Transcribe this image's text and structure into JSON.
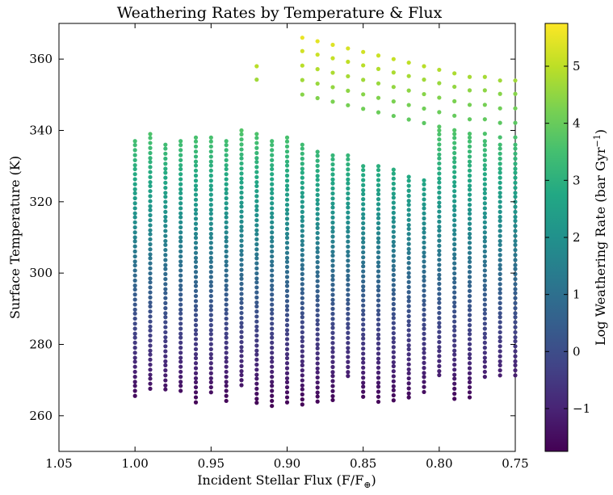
{
  "chart_data": {
    "type": "scatter",
    "title": "Weathering Rates by Temperature & Flux",
    "xlabel_main": "Incident Stellar Flux (F/F",
    "xlabel_sub": "⊕",
    "xlabel_close": ")",
    "ylabel": "Surface Temperature (K)",
    "colorbar_label_main": "Log Weathering Rate (bar Gyr",
    "colorbar_label_sup": "−1",
    "colorbar_label_close": ")",
    "xlim": [
      1.05,
      0.75
    ],
    "x_inverted": true,
    "ylim": [
      250,
      370
    ],
    "xticks": [
      1.05,
      1.0,
      0.95,
      0.9,
      0.85,
      0.8,
      0.75
    ],
    "xtick_labels": [
      "1.05",
      "1.00",
      "0.95",
      "0.90",
      "0.85",
      "0.80",
      "0.75"
    ],
    "yticks": [
      260,
      280,
      300,
      320,
      340,
      360
    ],
    "ytick_labels": [
      "260",
      "280",
      "300",
      "320",
      "340",
      "360"
    ],
    "colorbar": {
      "colormap": "viridis",
      "range": [
        -1.75,
        5.75
      ],
      "ticks": [
        -1,
        0,
        1,
        2,
        3,
        4,
        5
      ],
      "tick_labels": [
        "−1",
        "0",
        "1",
        "2",
        "3",
        "4",
        "5"
      ]
    },
    "marker_color_encoding": "log weathering rate (viridis), increasing with surface temperature",
    "columns": [
      {
        "x": 1.0,
        "ymin": 265,
        "ymax": 337
      },
      {
        "x": 0.99,
        "ymin": 267,
        "ymax": 339
      },
      {
        "x": 0.98,
        "ymin": 267,
        "ymax": 336
      },
      {
        "x": 0.97,
        "ymin": 266,
        "ymax": 337
      },
      {
        "x": 0.96,
        "ymin": 263,
        "ymax": 338
      },
      {
        "x": 0.95,
        "ymin": 266,
        "ymax": 338
      },
      {
        "x": 0.94,
        "ymin": 264,
        "ymax": 337
      },
      {
        "x": 0.93,
        "ymin": 268,
        "ymax": 340
      },
      {
        "x": 0.92,
        "ymin": 263,
        "ymax": 339
      },
      {
        "x": 0.91,
        "ymin": 262,
        "ymax": 337
      },
      {
        "x": 0.9,
        "ymin": 263,
        "ymax": 338
      },
      {
        "x": 0.89,
        "ymin": 263,
        "ymax": 336
      },
      {
        "x": 0.88,
        "ymin": 263,
        "ymax": 334
      },
      {
        "x": 0.87,
        "ymin": 263,
        "ymax": 333
      },
      {
        "x": 0.86,
        "ymin": 270,
        "ymax": 333
      },
      {
        "x": 0.85,
        "ymin": 264,
        "ymax": 330
      },
      {
        "x": 0.84,
        "ymin": 263,
        "ymax": 330
      },
      {
        "x": 0.83,
        "ymin": 263,
        "ymax": 329
      },
      {
        "x": 0.82,
        "ymin": 264,
        "ymax": 327
      },
      {
        "x": 0.81,
        "ymin": 266,
        "ymax": 326
      },
      {
        "x": 0.8,
        "ymin": 270,
        "ymax": 340
      },
      {
        "x": 0.79,
        "ymin": 264,
        "ymax": 339
      },
      {
        "x": 0.78,
        "ymin": 264,
        "ymax": 338
      },
      {
        "x": 0.77,
        "ymin": 270,
        "ymax": 337
      },
      {
        "x": 0.76,
        "ymin": 270,
        "ymax": 336
      },
      {
        "x": 0.75,
        "ymin": 270,
        "ymax": 336
      }
    ],
    "upper_branch": [
      {
        "x": 0.92,
        "ymin": 351,
        "ymax": 358
      },
      {
        "x": 0.89,
        "ymin": 349,
        "ymax": 366
      },
      {
        "x": 0.88,
        "ymin": 348,
        "ymax": 365
      },
      {
        "x": 0.87,
        "ymin": 347,
        "ymax": 364
      },
      {
        "x": 0.86,
        "ymin": 346,
        "ymax": 363
      },
      {
        "x": 0.85,
        "ymin": 345,
        "ymax": 362
      },
      {
        "x": 0.84,
        "ymin": 344,
        "ymax": 361
      },
      {
        "x": 0.83,
        "ymin": 343,
        "ymax": 360
      },
      {
        "x": 0.82,
        "ymin": 342,
        "ymax": 359
      },
      {
        "x": 0.81,
        "ymin": 341,
        "ymax": 358
      },
      {
        "x": 0.8,
        "ymin": 340,
        "ymax": 357
      },
      {
        "x": 0.79,
        "ymin": 339,
        "ymax": 356
      },
      {
        "x": 0.78,
        "ymin": 338,
        "ymax": 355
      },
      {
        "x": 0.77,
        "ymin": 337,
        "ymax": 355
      },
      {
        "x": 0.76,
        "ymin": 336,
        "ymax": 354
      },
      {
        "x": 0.75,
        "ymin": 336,
        "ymax": 354
      }
    ]
  }
}
